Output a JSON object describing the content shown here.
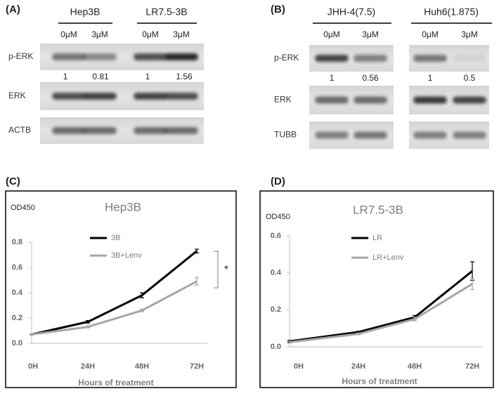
{
  "blots": [
    {
      "label": "(A)",
      "groups": [
        {
          "name": "Hep3B",
          "lanes": [
            "0μM",
            "3μM"
          ]
        },
        {
          "name": "LR7.5-3B",
          "lanes": [
            "0μM",
            "3μM"
          ]
        }
      ],
      "rows": [
        "p-ERK",
        "ERK",
        "ACTB"
      ],
      "quant": [
        1,
        0.81,
        1,
        1.56
      ]
    },
    {
      "label": "(B)",
      "groups": [
        {
          "name": "JHH-4(7.5)",
          "lanes": [
            "0μM",
            "3μM"
          ]
        },
        {
          "name": "Huh6(1.875)",
          "lanes": [
            "0μM",
            "3μM"
          ]
        }
      ],
      "rows": [
        "p-ERK",
        "ERK",
        "TUBB"
      ],
      "quant": [
        1,
        0.56,
        1,
        0.5
      ]
    }
  ],
  "chart_data": [
    {
      "type": "line",
      "panel": "(C)",
      "title": "Hep3B",
      "y_label": "OD450",
      "x_label": "Hours of treatment",
      "categories": [
        "0H",
        "24H",
        "48H",
        "72H"
      ],
      "series": [
        {
          "name": "3B",
          "color": "#000000",
          "values": [
            0.07,
            0.17,
            0.38,
            0.73
          ],
          "errors": [
            0.005,
            0.01,
            0.02,
            0.015
          ]
        },
        {
          "name": "3B+Lenv",
          "color": "#a6a6a6",
          "values": [
            0.07,
            0.13,
            0.26,
            0.49
          ],
          "errors": [
            0.005,
            0.008,
            0.01,
            0.03
          ]
        }
      ],
      "ylim": [
        0,
        0.8
      ],
      "yticks": [
        {
          "value": 0,
          "label": "0.0"
        },
        0.2,
        0.4,
        0.6,
        0.8
      ],
      "annotation": "*"
    },
    {
      "type": "line",
      "panel": "(D)",
      "title": "LR7.5-3B",
      "y_label": "OD450",
      "x_label": "Hours of treatment",
      "categories": [
        "0H",
        "24H",
        "48H",
        "72H"
      ],
      "series": [
        {
          "name": "LR",
          "color": "#000000",
          "values": [
            0.03,
            0.08,
            0.16,
            0.41
          ],
          "errors": [
            0.005,
            0.005,
            0.01,
            0.05
          ]
        },
        {
          "name": "LR+Lenv",
          "color": "#a6a6a6",
          "values": [
            0.025,
            0.07,
            0.15,
            0.34
          ],
          "errors": [
            0.005,
            0.005,
            0.01,
            0.03
          ]
        }
      ],
      "ylim": [
        0,
        0.6
      ],
      "yticks": [
        {
          "value": 0,
          "label": "0.0"
        },
        0.2,
        0.4,
        0.6
      ]
    }
  ]
}
